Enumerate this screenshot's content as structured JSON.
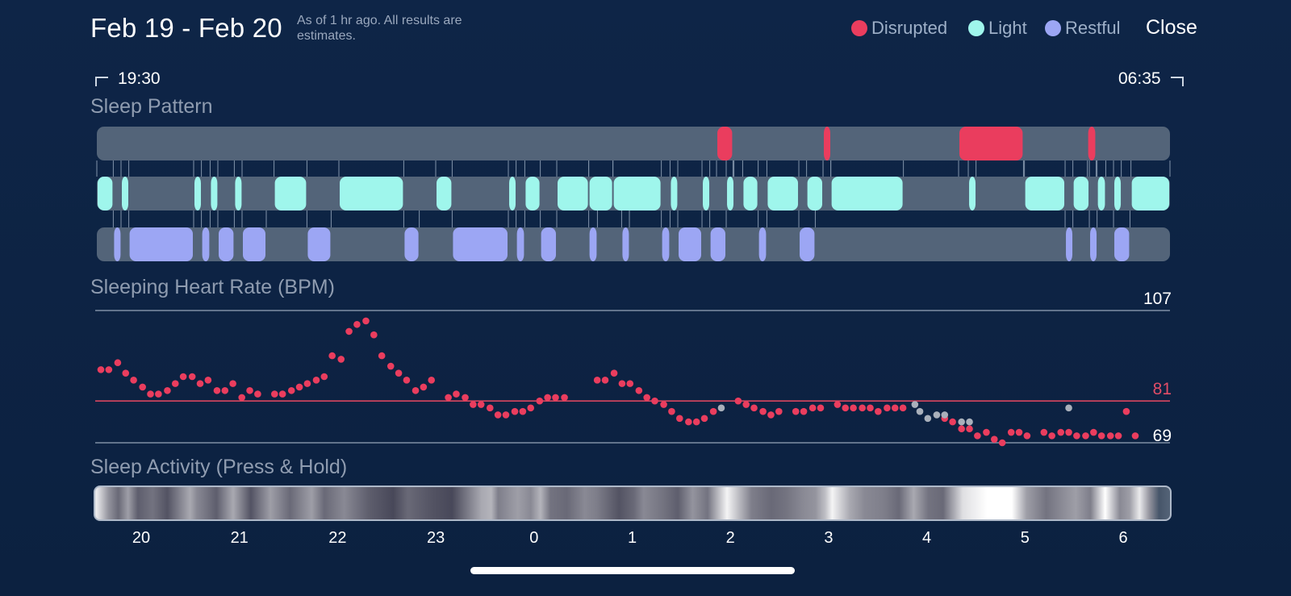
{
  "header": {
    "title": "Feb 19 - Feb 20",
    "note": "As of 1 hr ago. All results are estimates.",
    "close_label": "Close"
  },
  "legend": [
    {
      "label": "Disrupted",
      "color": "#ea3d5e"
    },
    {
      "label": "Light",
      "color": "#9ff6ec"
    },
    {
      "label": "Restful",
      "color": "#9ca6f4"
    }
  ],
  "range": {
    "start": "19:30",
    "end": "06:35"
  },
  "sections": {
    "pattern": "Sleep Pattern",
    "heart_rate": "Sleeping Heart Rate (BPM)",
    "activity": "Sleep Activity (Press & Hold)"
  },
  "chart_data": [
    {
      "type": "timeline",
      "title": "Sleep Pattern",
      "time_start": 19.5,
      "time_end": 30.583,
      "time_unit": "hours since midnight Feb 19 (values > 24 are Feb 20)",
      "series": [
        {
          "name": "Disrupted",
          "color": "#ea3d5e",
          "segments": [
            [
              25.9,
              26.07
            ],
            [
              27.0,
              27.08
            ],
            [
              28.4,
              29.07
            ],
            [
              29.73,
              29.82
            ]
          ]
        },
        {
          "name": "Light",
          "color": "#9ff6ec",
          "segments": [
            [
              19.5,
              19.67
            ],
            [
              19.75,
              19.83
            ],
            [
              20.5,
              20.58
            ],
            [
              20.67,
              20.75
            ],
            [
              20.92,
              21.0
            ],
            [
              21.33,
              21.67
            ],
            [
              22.0,
              22.67
            ],
            [
              23.0,
              23.17
            ],
            [
              23.75,
              23.83
            ],
            [
              23.92,
              24.08
            ],
            [
              24.25,
              24.58
            ],
            [
              24.58,
              24.83
            ],
            [
              24.83,
              25.33
            ],
            [
              25.42,
              25.5
            ],
            [
              25.75,
              25.83
            ],
            [
              26.0,
              26.08
            ],
            [
              26.17,
              26.33
            ],
            [
              26.42,
              26.75
            ],
            [
              26.83,
              27.0
            ],
            [
              27.08,
              27.83
            ],
            [
              28.5,
              28.58
            ],
            [
              29.08,
              29.5
            ],
            [
              29.58,
              29.75
            ],
            [
              29.83,
              29.92
            ],
            [
              30.0,
              30.08
            ],
            [
              30.18,
              30.583
            ]
          ]
        },
        {
          "name": "Restful",
          "color": "#9ca6f4",
          "segments": [
            [
              19.67,
              19.75
            ],
            [
              19.83,
              20.5
            ],
            [
              20.58,
              20.67
            ],
            [
              20.75,
              20.92
            ],
            [
              21.0,
              21.25
            ],
            [
              21.67,
              21.92
            ],
            [
              22.67,
              22.83
            ],
            [
              23.17,
              23.75
            ],
            [
              23.83,
              23.92
            ],
            [
              24.08,
              24.25
            ],
            [
              24.58,
              24.67
            ],
            [
              24.92,
              25.0
            ],
            [
              25.33,
              25.42
            ],
            [
              25.5,
              25.75
            ],
            [
              25.83,
              26.0
            ],
            [
              26.33,
              26.42
            ],
            [
              26.75,
              26.92
            ],
            [
              29.5,
              29.58
            ],
            [
              29.75,
              29.83
            ],
            [
              30.0,
              30.17
            ]
          ]
        }
      ]
    },
    {
      "type": "scatter",
      "title": "Sleeping Heart Rate (BPM)",
      "ylabel": "BPM",
      "ylim": [
        69,
        107
      ],
      "reference_lines": [
        {
          "value": 107,
          "label": "107"
        },
        {
          "value": 81,
          "label": "81"
        },
        {
          "value": 69,
          "label": "69"
        }
      ],
      "series": [
        {
          "name": "Heart rate",
          "color": "#ea3d5e",
          "points": [
            [
              19.5,
              90
            ],
            [
              19.58,
              90
            ],
            [
              19.67,
              92
            ],
            [
              19.75,
              89
            ],
            [
              19.83,
              87
            ],
            [
              19.92,
              85
            ],
            [
              20.0,
              83
            ],
            [
              20.08,
              83
            ],
            [
              20.17,
              84
            ],
            [
              20.25,
              86
            ],
            [
              20.33,
              88
            ],
            [
              20.42,
              88
            ],
            [
              20.5,
              86
            ],
            [
              20.58,
              87
            ],
            [
              20.67,
              84
            ],
            [
              20.75,
              84
            ],
            [
              20.83,
              86
            ],
            [
              20.92,
              82
            ],
            [
              21.0,
              84
            ],
            [
              21.08,
              83
            ],
            [
              21.25,
              83
            ],
            [
              21.33,
              83
            ],
            [
              21.42,
              84
            ],
            [
              21.5,
              85
            ],
            [
              21.58,
              86
            ],
            [
              21.67,
              87
            ],
            [
              21.75,
              88
            ],
            [
              21.83,
              94
            ],
            [
              21.92,
              93
            ],
            [
              22.0,
              101
            ],
            [
              22.08,
              103
            ],
            [
              22.17,
              104
            ],
            [
              22.25,
              100
            ],
            [
              22.33,
              94
            ],
            [
              22.42,
              91
            ],
            [
              22.5,
              89
            ],
            [
              22.58,
              87
            ],
            [
              22.67,
              84
            ],
            [
              22.75,
              85
            ],
            [
              22.83,
              87
            ],
            [
              23.0,
              82
            ],
            [
              23.08,
              83
            ],
            [
              23.17,
              82
            ],
            [
              23.25,
              80
            ],
            [
              23.33,
              80
            ],
            [
              23.42,
              79
            ],
            [
              23.5,
              77
            ],
            [
              23.58,
              77
            ],
            [
              23.67,
              78
            ],
            [
              23.75,
              78
            ],
            [
              23.83,
              79
            ],
            [
              23.92,
              81
            ],
            [
              24.0,
              82
            ],
            [
              24.08,
              82
            ],
            [
              24.17,
              82
            ],
            [
              24.5,
              87
            ],
            [
              24.58,
              87
            ],
            [
              24.67,
              89
            ],
            [
              24.75,
              86
            ],
            [
              24.83,
              86
            ],
            [
              24.92,
              84
            ],
            [
              25.0,
              82
            ],
            [
              25.08,
              81
            ],
            [
              25.17,
              80
            ],
            [
              25.25,
              78
            ],
            [
              25.33,
              76
            ],
            [
              25.42,
              75
            ],
            [
              25.5,
              75
            ],
            [
              25.58,
              76
            ],
            [
              25.67,
              78
            ],
            [
              25.92,
              81
            ],
            [
              26.0,
              80
            ],
            [
              26.08,
              79
            ],
            [
              26.17,
              78
            ],
            [
              26.25,
              77
            ],
            [
              26.33,
              78
            ],
            [
              26.5,
              78
            ],
            [
              26.58,
              78
            ],
            [
              26.67,
              79
            ],
            [
              26.75,
              79
            ],
            [
              26.92,
              80
            ],
            [
              27.0,
              79
            ],
            [
              27.08,
              79
            ],
            [
              27.17,
              79
            ],
            [
              27.25,
              79
            ],
            [
              27.33,
              78
            ],
            [
              27.42,
              79
            ],
            [
              27.5,
              79
            ],
            [
              27.58,
              79
            ],
            [
              28.0,
              76
            ],
            [
              28.08,
              75
            ],
            [
              28.17,
              73
            ],
            [
              28.25,
              73
            ],
            [
              28.33,
              71
            ],
            [
              28.42,
              72
            ],
            [
              28.5,
              70
            ],
            [
              28.58,
              69
            ],
            [
              28.67,
              72
            ],
            [
              28.75,
              72
            ],
            [
              28.83,
              71
            ],
            [
              29.0,
              72
            ],
            [
              29.08,
              71
            ],
            [
              29.17,
              72
            ],
            [
              29.25,
              72
            ],
            [
              29.33,
              71
            ],
            [
              29.42,
              71
            ],
            [
              29.5,
              72
            ],
            [
              29.58,
              71
            ],
            [
              29.67,
              71
            ],
            [
              29.75,
              71
            ],
            [
              29.83,
              78
            ],
            [
              29.92,
              71
            ]
          ]
        },
        {
          "name": "Uncertain",
          "color": "#a9b0bb",
          "points": [
            [
              25.75,
              79
            ],
            [
              27.7,
              80
            ],
            [
              27.75,
              78
            ],
            [
              27.83,
              76
            ],
            [
              27.92,
              77
            ],
            [
              28.0,
              77
            ],
            [
              28.17,
              75
            ],
            [
              28.25,
              75
            ],
            [
              29.25,
              79
            ]
          ]
        }
      ]
    },
    {
      "type": "heatmap",
      "title": "Sleep Activity (Press & Hold)",
      "x_ticks": [
        "20",
        "21",
        "22",
        "23",
        "0",
        "1",
        "2",
        "3",
        "4",
        "5",
        "6"
      ],
      "x_tick_values": [
        20,
        21,
        22,
        23,
        24,
        25,
        26,
        27,
        28,
        29,
        30
      ],
      "intensity": [
        [
          19.53,
          0.9
        ],
        [
          19.65,
          0.5
        ],
        [
          19.75,
          0.3
        ],
        [
          19.85,
          0.55
        ],
        [
          19.95,
          0.25
        ],
        [
          20.1,
          0.35
        ],
        [
          20.25,
          0.2
        ],
        [
          20.48,
          0.6
        ],
        [
          20.55,
          0.45
        ],
        [
          20.75,
          0.25
        ],
        [
          20.92,
          0.6
        ],
        [
          21.1,
          0.2
        ],
        [
          21.3,
          0.55
        ],
        [
          21.5,
          0.3
        ],
        [
          21.72,
          0.55
        ],
        [
          21.85,
          0.3
        ],
        [
          22.05,
          0.45
        ],
        [
          22.3,
          0.25
        ],
        [
          22.55,
          0.15
        ],
        [
          22.7,
          0.3
        ],
        [
          22.95,
          0.2
        ],
        [
          23.15,
          0.15
        ],
        [
          23.45,
          0.6
        ],
        [
          23.55,
          0.65
        ],
        [
          23.62,
          0.4
        ],
        [
          23.75,
          0.5
        ],
        [
          23.82,
          0.55
        ],
        [
          23.95,
          0.45
        ],
        [
          24.05,
          0.65
        ],
        [
          24.15,
          0.35
        ],
        [
          24.32,
          0.3
        ],
        [
          24.5,
          0.45
        ],
        [
          24.62,
          0.4
        ],
        [
          24.85,
          0.2
        ],
        [
          25.0,
          0.3
        ],
        [
          25.1,
          0.45
        ],
        [
          25.3,
          0.35
        ],
        [
          25.45,
          0.25
        ],
        [
          25.6,
          0.5
        ],
        [
          25.75,
          0.35
        ],
        [
          25.95,
          0.95
        ],
        [
          26.2,
          0.4
        ],
        [
          26.4,
          0.3
        ],
        [
          26.55,
          0.35
        ],
        [
          26.72,
          0.45
        ],
        [
          26.85,
          0.5
        ],
        [
          26.95,
          0.7
        ],
        [
          27.02,
          0.95
        ],
        [
          27.2,
          0.6
        ],
        [
          27.35,
          0.45
        ],
        [
          27.55,
          0.4
        ],
        [
          27.7,
          0.3
        ],
        [
          27.85,
          0.6
        ],
        [
          28.0,
          0.35
        ],
        [
          28.15,
          0.3
        ],
        [
          28.35,
          0.85
        ],
        [
          28.6,
          1.0
        ],
        [
          28.85,
          1.0
        ],
        [
          29.0,
          0.55
        ],
        [
          29.2,
          0.35
        ],
        [
          29.35,
          0.45
        ],
        [
          29.5,
          0.55
        ],
        [
          29.65,
          0.4
        ],
        [
          29.8,
          1.0
        ],
        [
          29.95,
          0.45
        ],
        [
          30.05,
          0.55
        ],
        [
          30.15,
          0.9
        ],
        [
          30.25,
          0.5
        ]
      ]
    }
  ]
}
